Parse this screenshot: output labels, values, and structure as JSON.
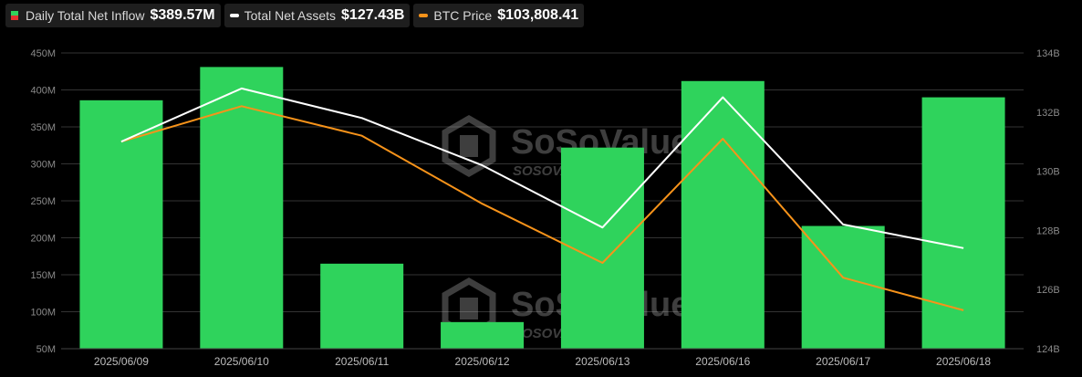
{
  "legend": {
    "inflow_label": "Daily Total Net Inflow",
    "inflow_value": "$389.57M",
    "assets_label": "Total Net Assets",
    "assets_value": "$127.43B",
    "price_label": "BTC Price",
    "price_value": "$103,808.41"
  },
  "watermark": {
    "brand": "SoSoValue",
    "sub": "SOSOVALUE"
  },
  "colors": {
    "bar": "#2fd35c",
    "assets_line": "#ffffff",
    "price_line": "#f7931a",
    "grid": "#333333",
    "background": "#000000"
  },
  "chart_data": {
    "type": "bar",
    "categories": [
      "2025/06/09",
      "2025/06/10",
      "2025/06/11",
      "2025/06/12",
      "2025/06/13",
      "2025/06/16",
      "2025/06/17",
      "2025/06/18"
    ],
    "series": [
      {
        "name": "Daily Total Net Inflow",
        "type": "bar",
        "axis": "left",
        "values": [
          386,
          431,
          165,
          86,
          322,
          412,
          216,
          390
        ]
      },
      {
        "name": "Total Net Assets",
        "type": "line",
        "axis": "right",
        "values": [
          131.0,
          132.8,
          131.8,
          130.2,
          128.1,
          132.5,
          128.2,
          127.4
        ]
      },
      {
        "name": "BTC Price",
        "type": "line",
        "axis": "right",
        "scaled": true,
        "values": [
          131.0,
          132.2,
          131.2,
          128.9,
          126.9,
          131.1,
          126.4,
          125.3
        ]
      }
    ],
    "y_left": {
      "min": 50,
      "max": 450,
      "step": 50,
      "ticks": [
        "50M",
        "100M",
        "150M",
        "200M",
        "250M",
        "300M",
        "350M",
        "400M",
        "450M"
      ]
    },
    "y_right": {
      "min": 124,
      "max": 134,
      "step": 2,
      "ticks": [
        "124B",
        "126B",
        "128B",
        "130B",
        "132B",
        "134B"
      ]
    },
    "grid": true,
    "legend_position": "top-left"
  }
}
